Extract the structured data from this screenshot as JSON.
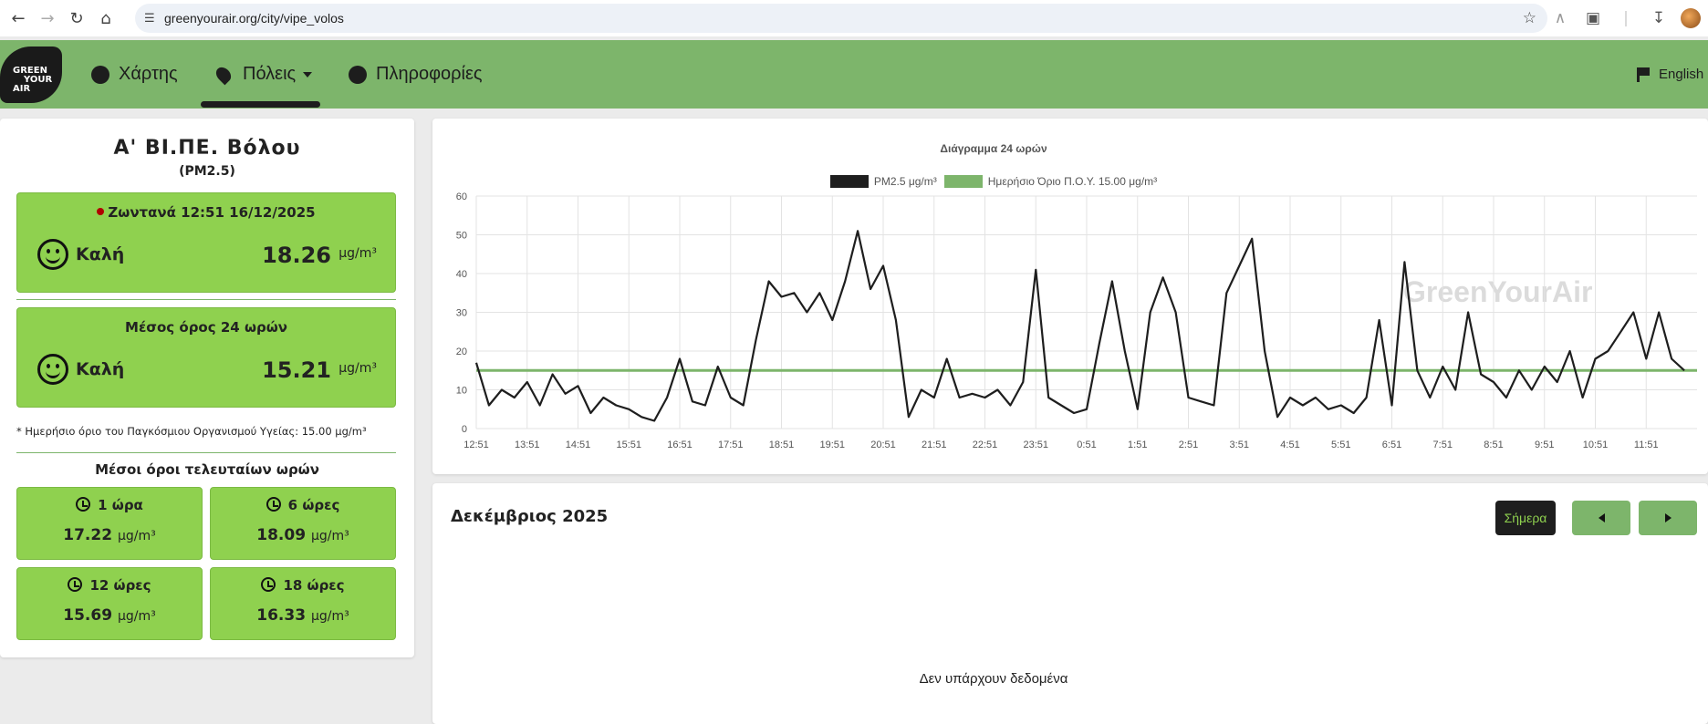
{
  "browser": {
    "url": "greenyourair.org/city/vipe_volos"
  },
  "header": {
    "logo_lines": [
      "GREEN",
      "YOUR",
      "AIR"
    ],
    "nav_map": "Χάρτης",
    "nav_cities": "Πόλεις",
    "nav_info": "Πληροφορίες",
    "language": "English"
  },
  "station": {
    "name": "Α' ΒΙ.ΠΕ. Βόλου",
    "pollutant": "(PM2.5)",
    "live": {
      "label": "Ζωντανά 12:51 16/12/2025",
      "quality": "Καλή",
      "value": "18.26",
      "unit": "μg/m³"
    },
    "avg24": {
      "label": "Μέσος όρος 24 ωρών",
      "quality": "Καλή",
      "value": "15.21",
      "unit": "μg/m³"
    },
    "footnote": "* Ημερήσιο όριο του Παγκόσμιου Οργανισμού Υγείας: 15.00 μg/m³",
    "history_title": "Μέσοι όροι τελευταίων ωρών",
    "history": [
      {
        "label": "1 ώρα",
        "value": "17.22",
        "unit": "μg/m³"
      },
      {
        "label": "6 ώρες",
        "value": "18.09",
        "unit": "μg/m³"
      },
      {
        "label": "12 ώρες",
        "value": "15.69",
        "unit": "μg/m³"
      },
      {
        "label": "18 ώρες",
        "value": "16.33",
        "unit": "μg/m³"
      }
    ]
  },
  "chart_data": {
    "type": "line",
    "title": "Διάγραμμα 24 ωρών",
    "watermark": "GreenYourAir",
    "ylim": [
      0,
      60
    ],
    "yticks": [
      0,
      10,
      20,
      30,
      40,
      50,
      60
    ],
    "xticks": [
      "12:51",
      "13:51",
      "14:51",
      "15:51",
      "16:51",
      "17:51",
      "18:51",
      "19:51",
      "20:51",
      "21:51",
      "22:51",
      "23:51",
      "0:51",
      "1:51",
      "2:51",
      "3:51",
      "4:51",
      "5:51",
      "6:51",
      "7:51",
      "8:51",
      "9:51",
      "10:51",
      "11:51"
    ],
    "grid": true,
    "legend": "top",
    "series": [
      {
        "name": "PM2.5 μg/m³",
        "color": "#1e1e1e",
        "x_hours": [
          0,
          0.25,
          0.5,
          0.75,
          1.0,
          1.25,
          1.5,
          1.75,
          2.0,
          2.25,
          2.5,
          2.75,
          3.0,
          3.25,
          3.5,
          3.75,
          4.0,
          4.25,
          4.5,
          4.75,
          5.0,
          5.25,
          5.5,
          5.75,
          6.0,
          6.25,
          6.5,
          6.75,
          7.0,
          7.25,
          7.5,
          7.75,
          8.0,
          8.25,
          8.5,
          8.75,
          9.0,
          9.25,
          9.5,
          9.75,
          10.0,
          10.25,
          10.5,
          10.75,
          11.0,
          11.25,
          11.5,
          11.75,
          12.0,
          12.25,
          12.5,
          12.75,
          13.0,
          13.25,
          13.5,
          13.75,
          14.0,
          14.25,
          14.5,
          14.75,
          15.0,
          15.25,
          15.5,
          15.75,
          16.0,
          16.25,
          16.5,
          16.75,
          17.0,
          17.25,
          17.5,
          17.75,
          18.0,
          18.25,
          18.5,
          18.75,
          19.0,
          19.25,
          19.5,
          19.75,
          20.0,
          20.25,
          20.5,
          20.75,
          21.0,
          21.25,
          21.5,
          21.75,
          22.0,
          22.25,
          22.5,
          22.75,
          23.0,
          23.25,
          23.5,
          23.75
        ],
        "values": [
          17,
          6,
          10,
          8,
          12,
          6,
          14,
          9,
          11,
          4,
          8,
          6,
          5,
          3,
          2,
          8,
          18,
          7,
          6,
          16,
          8,
          6,
          23,
          38,
          34,
          35,
          30,
          35,
          28,
          38,
          51,
          36,
          42,
          28,
          3,
          10,
          8,
          18,
          8,
          9,
          8,
          10,
          6,
          12,
          41,
          8,
          6,
          4,
          5,
          22,
          38,
          20,
          5,
          30,
          39,
          30,
          8,
          7,
          6,
          35,
          42,
          49,
          20,
          3,
          8,
          6,
          8,
          5,
          6,
          4,
          8,
          28,
          6,
          43,
          15,
          8,
          16,
          10,
          30,
          14,
          12,
          8,
          15,
          10,
          16,
          12,
          20,
          8,
          18,
          20,
          25,
          30,
          18,
          30,
          18,
          15
        ]
      },
      {
        "name": "Ημερήσιο Όριο Π.Ο.Υ. 15.00 μg/m³",
        "color": "#7db56b",
        "values": [
          15
        ]
      }
    ]
  },
  "calendar": {
    "month": "Δεκέμβριος 2025",
    "today_label": "Σήμερα",
    "no_data": "Δεν υπάρχουν δεδομένα"
  }
}
